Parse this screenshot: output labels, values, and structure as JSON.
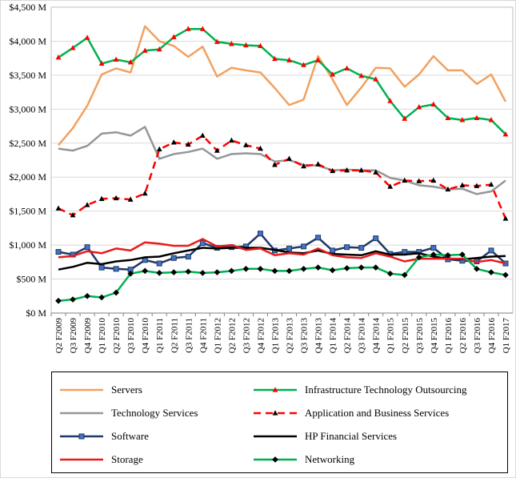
{
  "chart_data": {
    "type": "line",
    "title": "",
    "xlabel": "",
    "ylabel": "",
    "ylim": [
      0,
      4500
    ],
    "y_ticks": [
      0,
      500,
      1000,
      1500,
      2000,
      2500,
      3000,
      3500,
      4000,
      4500
    ],
    "y_tick_labels": [
      "$0 M",
      "$500 M",
      "$1,000 M",
      "$1,500 M",
      "$2,000 M",
      "$2,500 M",
      "$3,000 M",
      "$3,500 M",
      "$4,000 M",
      "$4,500 M"
    ],
    "grid": "horizontal",
    "legend": "bottom",
    "categories": [
      "Q2 F2009",
      "Q3 F2009",
      "Q4 F2009",
      "Q1 F2010",
      "Q2 F2010",
      "Q3 F2010",
      "Q4 F2010",
      "Q1 F2011",
      "Q2 F2011",
      "Q3 F2011",
      "Q4 F2011",
      "Q1 F2012",
      "Q2 F2012",
      "Q3 F2012",
      "Q4 F2012",
      "Q1 F2013",
      "Q2 F2013",
      "Q3 F2013",
      "Q4 F2013",
      "Q1 F2014",
      "Q2 F2014",
      "Q3 F2014",
      "Q4 F2014",
      "Q1 F2015",
      "Q2 F2015",
      "Q3 F2015",
      "Q4 F2015",
      "Q1 F2016",
      "Q2 F2016",
      "Q3 F2016",
      "Q4 F2016",
      "Q1 F2017"
    ],
    "series": [
      {
        "name": "Servers",
        "color": "#f2a15f",
        "dash": "solid",
        "marker": "none",
        "values": [
          2470,
          2720,
          3050,
          3510,
          3600,
          3540,
          4220,
          4000,
          3930,
          3770,
          3920,
          3480,
          3610,
          3570,
          3540,
          3310,
          3060,
          3140,
          3780,
          3440,
          3060,
          3320,
          3610,
          3600,
          3330,
          3510,
          3780,
          3570,
          3570,
          3370,
          3510,
          3110
        ]
      },
      {
        "name": "Infrastructure Technology Outsourcing",
        "color": "#00b050",
        "dash": "solid",
        "marker": "triangle",
        "values": [
          3760,
          3900,
          4050,
          3670,
          3730,
          3690,
          3860,
          3880,
          4060,
          4180,
          4180,
          3990,
          3960,
          3940,
          3930,
          3740,
          3720,
          3650,
          3720,
          3510,
          3600,
          3490,
          3440,
          3120,
          2860,
          3030,
          3070,
          2870,
          2840,
          2870,
          2840,
          2630
        ]
      },
      {
        "name": "Technology Services",
        "color": "#969696",
        "dash": "solid",
        "marker": "none",
        "values": [
          2420,
          2390,
          2460,
          2640,
          2660,
          2610,
          2740,
          2270,
          2340,
          2370,
          2420,
          2270,
          2340,
          2350,
          2340,
          2230,
          2250,
          2180,
          2170,
          2100,
          2110,
          2100,
          2100,
          1990,
          1950,
          1880,
          1860,
          1820,
          1830,
          1750,
          1790,
          1950
        ]
      },
      {
        "name": "Application and Business Services",
        "color": "#ff0000",
        "dash": "dashed",
        "marker": "triangle",
        "values": [
          1540,
          1440,
          1590,
          1680,
          1690,
          1670,
          1760,
          2410,
          2510,
          2480,
          2610,
          2390,
          2540,
          2470,
          2420,
          2180,
          2270,
          2160,
          2190,
          2090,
          2100,
          2100,
          2070,
          1860,
          1950,
          1940,
          1950,
          1820,
          1880,
          1870,
          1890,
          1390
        ]
      },
      {
        "name": "Software",
        "color": "#1f3864",
        "dash": "solid",
        "marker": "square",
        "values": [
          900,
          860,
          970,
          670,
          650,
          640,
          780,
          730,
          810,
          830,
          1030,
          960,
          970,
          980,
          1170,
          920,
          950,
          980,
          1110,
          920,
          970,
          960,
          1100,
          870,
          900,
          900,
          960,
          790,
          770,
          760,
          920,
          730
        ]
      },
      {
        "name": "HP Financial Services",
        "color": "#000000",
        "dash": "solid",
        "marker": "none",
        "values": [
          640,
          680,
          740,
          720,
          760,
          780,
          820,
          830,
          880,
          920,
          960,
          950,
          960,
          960,
          960,
          930,
          890,
          880,
          920,
          870,
          860,
          850,
          910,
          860,
          860,
          880,
          830,
          800,
          790,
          810,
          830,
          840
        ]
      },
      {
        "name": "Storage",
        "color": "#e81a1a",
        "dash": "solid",
        "marker": "none",
        "values": [
          820,
          840,
          910,
          880,
          950,
          920,
          1040,
          1020,
          990,
          990,
          1090,
          980,
          1000,
          930,
          950,
          850,
          880,
          860,
          950,
          850,
          820,
          810,
          880,
          830,
          760,
          800,
          800,
          800,
          800,
          750,
          780,
          730
        ]
      },
      {
        "name": "Networking",
        "color": "#00b050",
        "dash": "solid",
        "marker": "diamond",
        "values": [
          180,
          200,
          250,
          230,
          300,
          580,
          620,
          590,
          600,
          610,
          590,
          600,
          620,
          650,
          650,
          620,
          620,
          650,
          670,
          630,
          660,
          670,
          670,
          580,
          560,
          820,
          860,
          850,
          860,
          650,
          600,
          560
        ]
      }
    ]
  }
}
